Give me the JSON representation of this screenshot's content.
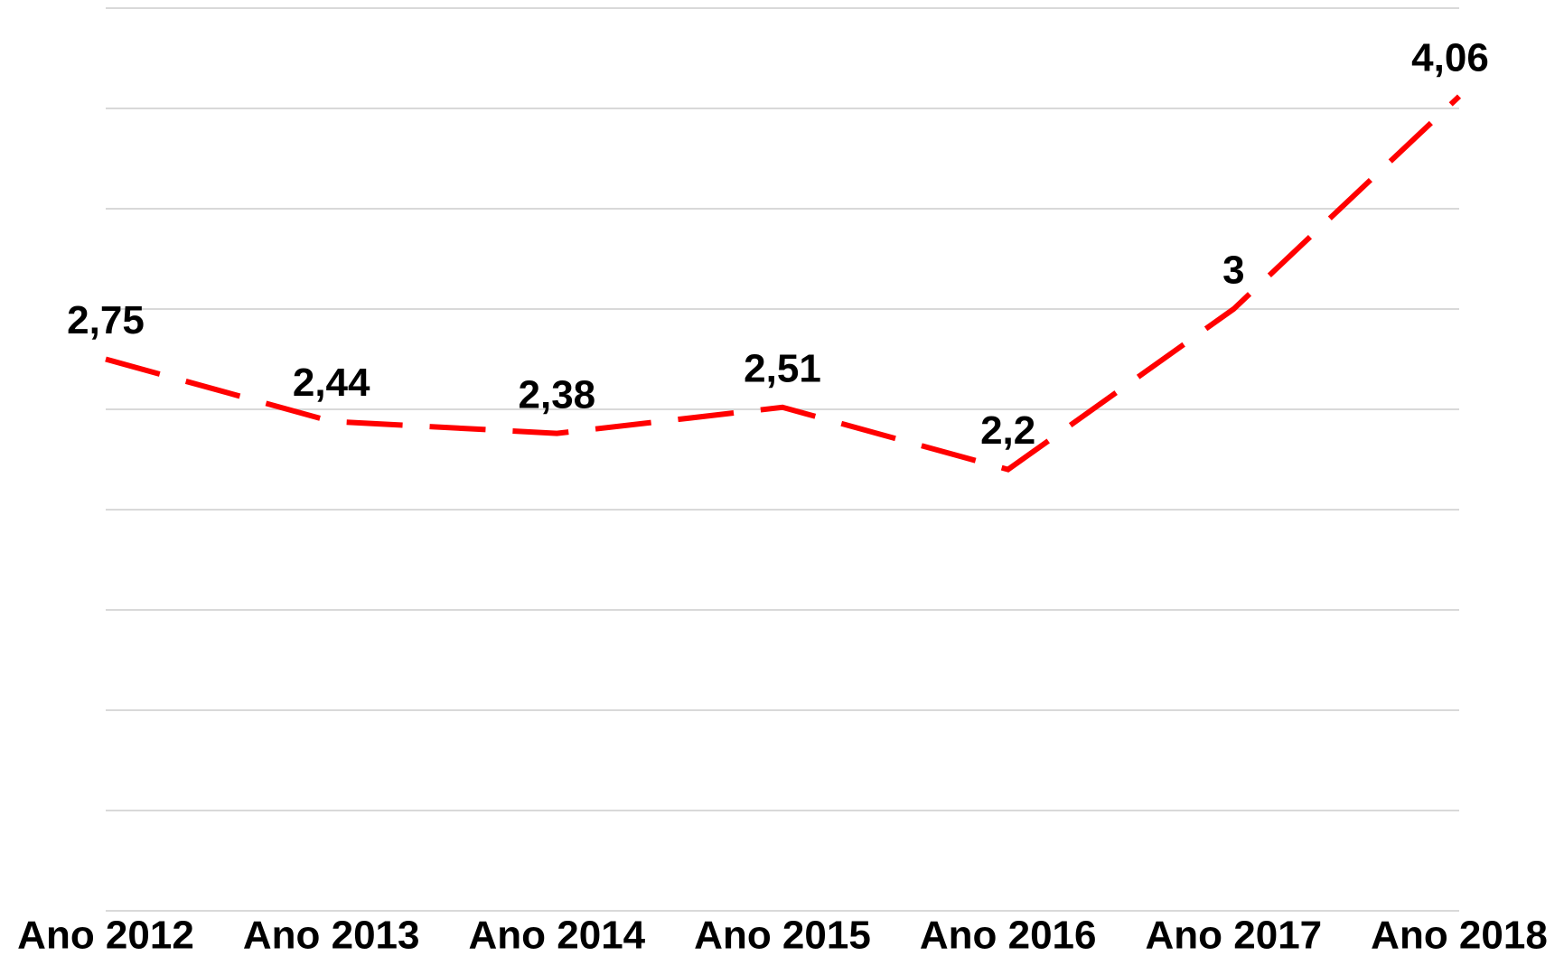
{
  "chart_data": {
    "type": "line",
    "categories": [
      "Ano 2012",
      "Ano 2013",
      "Ano 2014",
      "Ano 2015",
      "Ano 2016",
      "Ano 2017",
      "Ano 2018"
    ],
    "series": [
      {
        "color": "#ff0000",
        "values": [
          2.75,
          2.44,
          2.38,
          2.51,
          2.2,
          3,
          4.06
        ],
        "value_labels": [
          "2,75",
          "2,44",
          "2,38",
          "2,51",
          "2,2",
          "3",
          "4,06"
        ]
      }
    ],
    "ylim": [
      0,
      4.5
    ],
    "yticks": [
      0,
      0.5,
      1,
      1.5,
      2,
      2.5,
      3,
      3.5,
      4,
      4.5
    ],
    "grid": true
  }
}
